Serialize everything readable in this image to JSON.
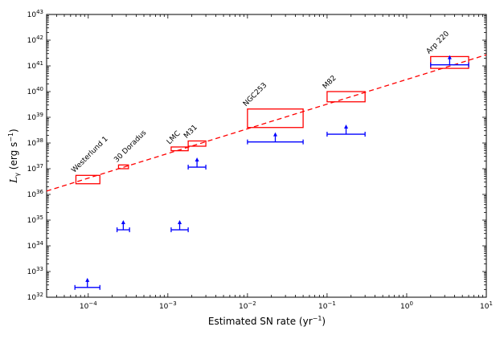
{
  "chart_data": {
    "type": "scatter",
    "xlabel": "Estimated SN rate (yr",
    "xlabel_sup": "−1",
    "xlabel_close": ")",
    "ylabel_sym": "L",
    "ylabel_sub": "γ",
    "ylabel_units": " (erg s",
    "ylabel_sup": "−1",
    "ylabel_close": ")",
    "xscale": "log",
    "yscale": "log",
    "xlim": [
      3e-05,
      10
    ],
    "ylim": [
      1e+32,
      1e+43
    ],
    "x_ticks": [
      {
        "value": 0.0001,
        "base": "10",
        "exp": "−4"
      },
      {
        "value": 0.001,
        "base": "10",
        "exp": "−3"
      },
      {
        "value": 0.01,
        "base": "10",
        "exp": "−2"
      },
      {
        "value": 0.1,
        "base": "10",
        "exp": "−1"
      },
      {
        "value": 1,
        "base": "10",
        "exp": "0"
      },
      {
        "value": 10,
        "base": "10",
        "exp": "1"
      }
    ],
    "y_ticks": [
      {
        "value": 1e+32,
        "base": "10",
        "exp": "32"
      },
      {
        "value": 1e+33,
        "base": "10",
        "exp": "33"
      },
      {
        "value": 1e+34,
        "base": "10",
        "exp": "34"
      },
      {
        "value": 1e+35,
        "base": "10",
        "exp": "35"
      },
      {
        "value": 1e+36,
        "base": "10",
        "exp": "36"
      },
      {
        "value": 1e+37,
        "base": "10",
        "exp": "37"
      },
      {
        "value": 1e+38,
        "base": "10",
        "exp": "38"
      },
      {
        "value": 1e+39,
        "base": "10",
        "exp": "39"
      },
      {
        "value": 1e+40,
        "base": "10",
        "exp": "40"
      },
      {
        "value": 1e+41,
        "base": "10",
        "exp": "41"
      },
      {
        "value": 1e+42,
        "base": "10",
        "exp": "42"
      },
      {
        "value": 1e+43,
        "base": "10",
        "exp": "43"
      }
    ],
    "grid": false,
    "legend": "none",
    "fit_line": {
      "x": [
        3e-05,
        10
      ],
      "y": [
        1.35e+36,
        2.7e+41
      ],
      "style": "dashed",
      "color": "#ff0000"
    },
    "objects": [
      {
        "name": "Westerlund 1",
        "box": {
          "x": [
            7e-05,
            0.00014
          ],
          "y": [
            2.6e+36,
            5.5e+36
          ]
        },
        "limit": {
          "x": [
            6.8e-05,
            0.00014
          ],
          "y": 2.4e+32
        }
      },
      {
        "name": "30 Doradus",
        "box": {
          "x": [
            0.00024,
            0.00032
          ],
          "y": [
            1e+37,
            1.4e+37
          ]
        },
        "limit": {
          "x": [
            0.00023,
            0.00033
          ],
          "y": 4.2e+34
        }
      },
      {
        "name": "LMC",
        "box": {
          "x": [
            0.0011,
            0.0018
          ],
          "y": [
            5e+37,
            7e+37
          ]
        },
        "limit": {
          "x": [
            0.0011,
            0.0018
          ],
          "y": 4.2e+34
        }
      },
      {
        "name": "M31",
        "box": {
          "x": [
            0.0018,
            0.003
          ],
          "y": [
            7.5e+37,
            1.2e+38
          ]
        },
        "limit": {
          "x": [
            0.0018,
            0.003
          ],
          "y": 1.15e+37
        }
      },
      {
        "name": "NGC253",
        "box": {
          "x": [
            0.01,
            0.05
          ],
          "y": [
            4e+38,
            2.1e+39
          ]
        },
        "limit": {
          "x": [
            0.01,
            0.05
          ],
          "y": 1.1e+38
        }
      },
      {
        "name": "M82",
        "box": {
          "x": [
            0.1,
            0.3
          ],
          "y": [
            4e+39,
            1e+40
          ]
        },
        "limit": {
          "x": [
            0.1,
            0.3
          ],
          "y": 2.2e+38
        }
      },
      {
        "name": "Arp 220",
        "box": {
          "x": [
            2,
            6
          ],
          "y": [
            8e+40,
            2.3e+41
          ]
        },
        "limit": {
          "x": [
            2,
            6
          ],
          "y": 1.1e+41
        }
      }
    ],
    "colors": {
      "box": "#ff0000",
      "limit": "#0000ff",
      "fit": "#ff0000",
      "axes": "#000000"
    }
  }
}
